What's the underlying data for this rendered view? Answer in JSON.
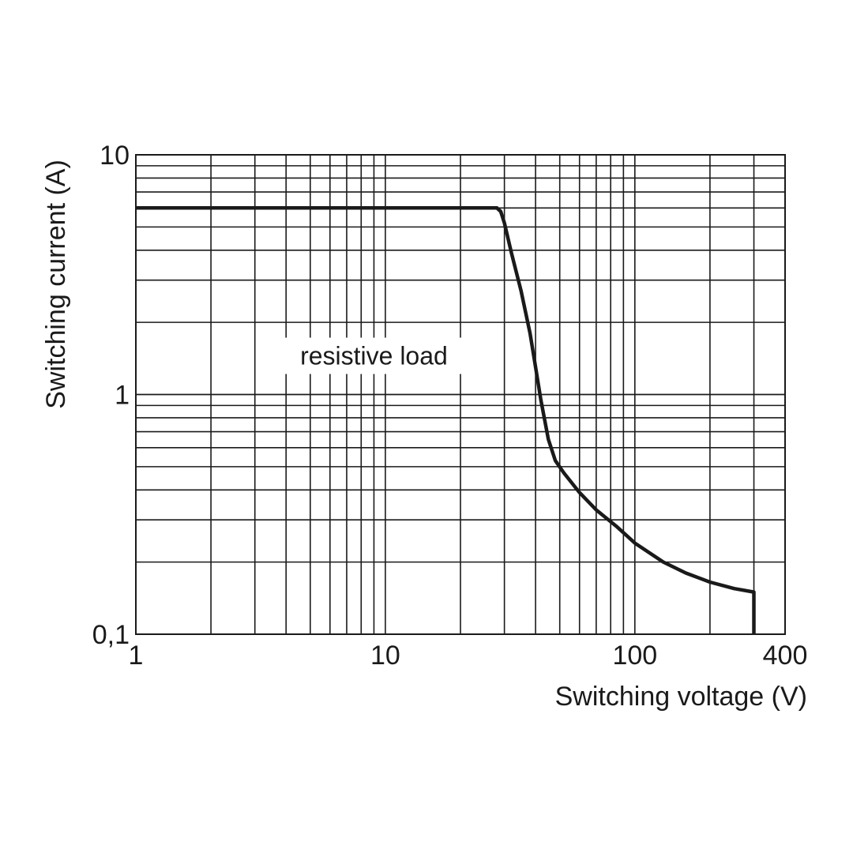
{
  "chart_data": {
    "type": "line",
    "title": "",
    "xlabel": "Switching voltage (V)",
    "ylabel": "Switching current (A)",
    "xscale": "log",
    "yscale": "log",
    "xlim": [
      1,
      400
    ],
    "ylim": [
      0.1,
      10
    ],
    "grid": true,
    "x_ticks": [
      {
        "value": 1,
        "label": "1"
      },
      {
        "value": 10,
        "label": "10"
      },
      {
        "value": 100,
        "label": "100"
      },
      {
        "value": 400,
        "label": "400"
      }
    ],
    "y_ticks": [
      {
        "value": 0.1,
        "label": "0,1"
      },
      {
        "value": 1,
        "label": "1"
      },
      {
        "value": 10,
        "label": "10"
      }
    ],
    "annotation": {
      "text": "resistive load",
      "x": 9,
      "y": 1.45
    },
    "series": [
      {
        "name": "",
        "color": "#1a1a1a",
        "x": [
          1,
          10,
          28,
          29,
          30,
          32,
          35,
          38,
          40,
          42,
          45,
          48,
          52,
          60,
          70,
          85,
          100,
          130,
          160,
          200,
          250,
          300,
          300
        ],
        "y": [
          6,
          6,
          6,
          5.8,
          5.2,
          3.9,
          2.7,
          1.8,
          1.3,
          0.95,
          0.65,
          0.53,
          0.47,
          0.39,
          0.33,
          0.28,
          0.24,
          0.2,
          0.18,
          0.165,
          0.155,
          0.15,
          0.1
        ]
      }
    ]
  }
}
